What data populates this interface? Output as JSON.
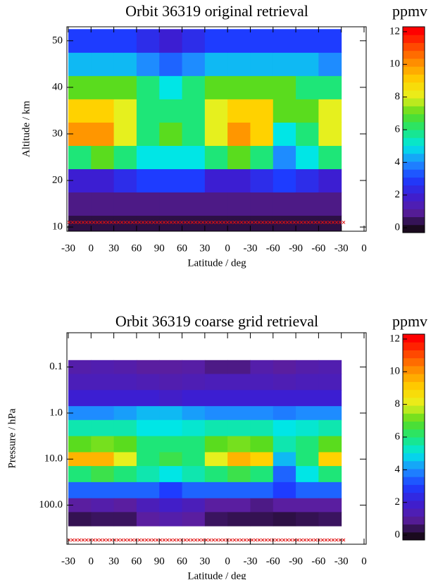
{
  "chart_data": [
    {
      "type": "heatmap",
      "title": "Orbit 36319 original retrieval",
      "xlabel": "Latitude / deg",
      "ylabel": "Altitude / km",
      "x_tick_labels": [
        "-30",
        "0",
        "30",
        "60",
        "90",
        "60",
        "30",
        "0",
        "-30",
        "-60",
        "-90",
        "-60",
        "-30",
        "0"
      ],
      "ylim": [
        9.1,
        53
      ],
      "yticks": [
        10,
        20,
        30,
        40,
        50
      ],
      "log_y": false,
      "rows": [
        10,
        15,
        20,
        25,
        30,
        35,
        40,
        45,
        50
      ],
      "values": [
        [
          0.3,
          0.3,
          0.3,
          0.3,
          0.3,
          0.3,
          0.3,
          0.3,
          0.3,
          0.3,
          0.3,
          0.3
        ],
        [
          0.8,
          0.8,
          0.8,
          0.8,
          0.8,
          0.8,
          0.8,
          0.8,
          0.8,
          0.8,
          0.8,
          0.8
        ],
        [
          2,
          2,
          2.5,
          3,
          3,
          3,
          2,
          2,
          2.5,
          3,
          2.5,
          2
        ],
        [
          6,
          7,
          6,
          5,
          5,
          5,
          6,
          7,
          6,
          4,
          5,
          6
        ],
        [
          10,
          10,
          8,
          6,
          7,
          6,
          8,
          10,
          9,
          5,
          6,
          8
        ],
        [
          9,
          9,
          8,
          6,
          6,
          6,
          8,
          9,
          9,
          7,
          7,
          8
        ],
        [
          7,
          7,
          7,
          6,
          5,
          6,
          7,
          7,
          7,
          7,
          6,
          6
        ],
        [
          4.5,
          4.5,
          4.5,
          4,
          3.5,
          4,
          4.5,
          4.5,
          4.5,
          4.5,
          4.5,
          4
        ],
        [
          3,
          3,
          3,
          2.5,
          2,
          2.5,
          3,
          3,
          3,
          3,
          3,
          3
        ]
      ],
      "colormap": [
        "#1a0a1e",
        "#5a1ea0",
        "#3c1ed2",
        "#1e3cff",
        "#1e8cff",
        "#00e6e6",
        "#1ee678",
        "#5adc1e",
        "#e6f01e",
        "#ffd200",
        "#ff9600",
        "#ff5000",
        "#ff0000"
      ],
      "colorbar": {
        "label": "ppmv",
        "range": [
          -0.3,
          12.3
        ],
        "ticks": [
          0,
          2,
          4,
          6,
          8,
          10,
          12
        ]
      }
    },
    {
      "type": "heatmap",
      "title": "Orbit 36319 coarse grid retrieval",
      "xlabel": "Latitude / deg",
      "ylabel": "Pressure / hPa",
      "x_tick_labels": [
        "-30",
        "0",
        "30",
        "60",
        "90",
        "60",
        "30",
        "0",
        "-30",
        "-60",
        "-90",
        "-60",
        "-30",
        "0"
      ],
      "ylim": [
        706,
        0.018
      ],
      "yticks": [
        {
          "value": 0.1,
          "label": "0.1"
        },
        {
          "value": 1,
          "label": "1.0"
        },
        {
          "value": 10,
          "label": "10.0"
        },
        {
          "value": 100,
          "label": "100.0"
        }
      ],
      "log_y": true,
      "rows": [
        0.1,
        0.2,
        0.5,
        1,
        2,
        5,
        10,
        20,
        50,
        100,
        200
      ],
      "values": [
        [
          1.2,
          1.3,
          1.2,
          1,
          1,
          1.1,
          0.8,
          0.8,
          1.2,
          1,
          1.2,
          1.3
        ],
        [
          1.5,
          1.5,
          1.5,
          1.4,
          1.3,
          1.4,
          1.5,
          1.5,
          1.5,
          1.4,
          1.5,
          1.5
        ],
        [
          2,
          2,
          2,
          2,
          1.8,
          2,
          2,
          2,
          2,
          2,
          2,
          2
        ],
        [
          4,
          4,
          4.2,
          4.5,
          4.5,
          4.2,
          4,
          4,
          4,
          3.8,
          4,
          4
        ],
        [
          5.5,
          5.5,
          5.5,
          5,
          5,
          5.2,
          5.5,
          5.5,
          5.5,
          5,
          5.2,
          5.5
        ],
        [
          7,
          7.2,
          7,
          6,
          6,
          6,
          7,
          7.2,
          7,
          5.5,
          6,
          7
        ],
        [
          9.5,
          9.5,
          8,
          6,
          6.5,
          6,
          8,
          9.5,
          9,
          4.5,
          6,
          9
        ],
        [
          6,
          6.5,
          6,
          5.5,
          5,
          5.5,
          6,
          6.5,
          6,
          3.5,
          5,
          6
        ],
        [
          3.5,
          3.5,
          3.5,
          3.5,
          3,
          3.5,
          3.5,
          3.5,
          3.5,
          3,
          3.5,
          3.5
        ],
        [
          1,
          1.2,
          1,
          1.5,
          1.8,
          1.5,
          1,
          1,
          0.8,
          1,
          1,
          1
        ],
        [
          0.4,
          0.5,
          0.5,
          1,
          1.2,
          1,
          0.5,
          0.4,
          0.4,
          0.3,
          0.4,
          0.5
        ]
      ],
      "colormap": [
        "#1a0a1e",
        "#5a1ea0",
        "#3c1ed2",
        "#1e3cff",
        "#1e8cff",
        "#00e6e6",
        "#1ee678",
        "#5adc1e",
        "#e6f01e",
        "#ffd200",
        "#ff9600",
        "#ff5000",
        "#ff0000"
      ],
      "colorbar": {
        "label": "ppmv",
        "range": [
          -0.3,
          12.3
        ],
        "ticks": [
          0,
          2,
          4,
          6,
          8,
          10,
          12
        ]
      }
    }
  ]
}
